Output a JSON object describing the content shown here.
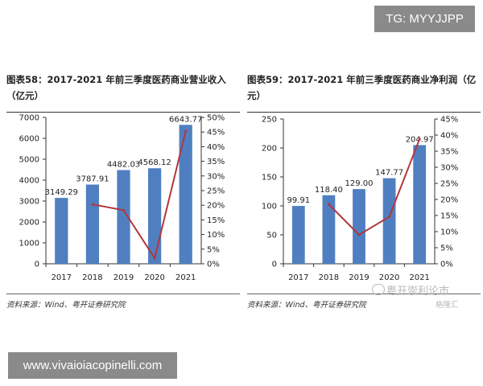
{
  "header": {
    "tag": "TG: MYYJJPP"
  },
  "left": {
    "title": "图表58：2017-2021 年前三季度医药商业营业收入（亿元）",
    "source": "资料来源：Wind、粤开证券研究院"
  },
  "right": {
    "title": "图表59：2017-2021 年前三季度医药商业净利润（亿元）",
    "source": "资料来源：Wind、粤开证券研究院"
  },
  "watermark": {
    "text": "粤开崇利论市",
    "small": "格隆汇"
  },
  "footer": {
    "url": "www.vivaioiacopinelli.com"
  },
  "colors": {
    "bar": "#4f7fc1",
    "line": "#b2373d",
    "axis": "#333333"
  },
  "chart_data": [
    {
      "type": "bar",
      "categories": [
        "2017",
        "2018",
        "2019",
        "2020",
        "2021"
      ],
      "series": [
        {
          "values": [
            3149.29,
            3787.91,
            4482.03,
            4568.12,
            6643.77
          ],
          "labels": [
            "3149.29",
            "3787.91",
            "4482.03",
            "4568.12",
            "6643.77"
          ]
        },
        {
          "type": "line",
          "axis": "right",
          "values": [
            null,
            20.3,
            18.3,
            1.9,
            45.4
          ]
        }
      ],
      "ylim": [
        0,
        7000
      ],
      "yticks": [
        0,
        1000,
        2000,
        3000,
        4000,
        5000,
        6000,
        7000
      ],
      "y2lim": [
        0,
        50
      ],
      "y2ticks": [
        "0%",
        "5%",
        "10%",
        "15%",
        "20%",
        "25%",
        "30%",
        "35%",
        "40%",
        "45%",
        "50%"
      ]
    },
    {
      "type": "bar",
      "categories": [
        "2017",
        "2018",
        "2019",
        "2020",
        "2021"
      ],
      "series": [
        {
          "values": [
            99.91,
            118.4,
            129.0,
            147.77,
            204.97
          ],
          "labels": [
            "99.91",
            "118.40",
            "129.00",
            "147.77",
            "204.97"
          ]
        },
        {
          "type": "line",
          "axis": "right",
          "values": [
            null,
            18.5,
            9.0,
            14.6,
            38.8
          ]
        }
      ],
      "ylim": [
        0,
        250
      ],
      "yticks": [
        0,
        50,
        100,
        150,
        200,
        250
      ],
      "y2lim": [
        0,
        45
      ],
      "y2ticks": [
        "0%",
        "5%",
        "10%",
        "15%",
        "20%",
        "25%",
        "30%",
        "35%",
        "40%",
        "45%"
      ]
    }
  ]
}
